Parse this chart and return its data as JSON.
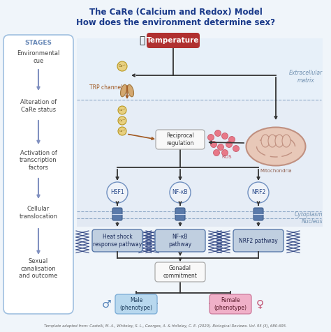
{
  "title_line1": "The CaRe (Calcium and Redox) Model",
  "title_line2": "How does the environment determine sex?",
  "title_color": "#1a3a8a",
  "bg_color": "#f0f5fa",
  "stages_label": "STAGES",
  "stages_label_color": "#6a8ab8",
  "stages_items": [
    "Environmental\ncue",
    "Alteration of\nCaRe status",
    "Activation of\ntranscription\nfactors",
    "Cellular\ntranslocation",
    "Sexual\ncanalisation\nand outcome"
  ],
  "extracellular_label": "Extracellular\nmatrix",
  "cytoplasm_label": "Cytoplasm",
  "nucleus_label": "Nucleus",
  "temperature_label": "Temperature",
  "temperature_bg": "#b03030",
  "temperature_text": "#ffffff",
  "trp_label": "TRP channel",
  "trp_color": "#a05820",
  "reciprocal_label": "Reciprocal\nregulation",
  "mitochondria_label": "Mitochondria",
  "ros_label": "ROS",
  "ca_label": "Ca²⁺",
  "hsf1_label": "HSF1",
  "nfkb_label": "NF-κB",
  "nrf2_label": "NRF2",
  "pathway1_label": "Heat shock\nresponse pathway",
  "pathway2_label": "NF-κB\npathway",
  "pathway3_label": "NRF2 pathway",
  "gonadal_label": "Gonadal\ncommitment",
  "male_label": "Male\n(phenotype)",
  "female_label": "Female\n(phenotype)",
  "male_box_color": "#b8d8ee",
  "female_box_color": "#f0b0c8",
  "pathway_box_color": "#c0cfe0",
  "pathway_box_edge": "#5a7aaa",
  "gonadal_box_color": "#f8f8f8",
  "gonadal_box_edge": "#aaaaaa",
  "arrow_dark": "#333333",
  "arrow_blue": "#5a7aaa",
  "arrow_brown": "#a05820",
  "footer": "Template adapted from: Castelli, M. A., Whiteley, S. L., Georges, A. & Holleley, C. E. (2020). Biological Reviews. Vol. 95 (3), 680-695.",
  "band_extracell_color": "#ddeaf8",
  "band_cytoplasm_color": "#ccd8ee",
  "dna_color": "#2a4080",
  "stage_box_bg": "#ffffff",
  "stage_box_edge": "#a0c0e0",
  "mito_color": "#e8c8b8",
  "mito_edge": "#c09080",
  "ros_dot_color": "#e87888",
  "receptor_color": "#5a7aaa",
  "ca_fill": "#e8d080",
  "ca_edge": "#b89820"
}
